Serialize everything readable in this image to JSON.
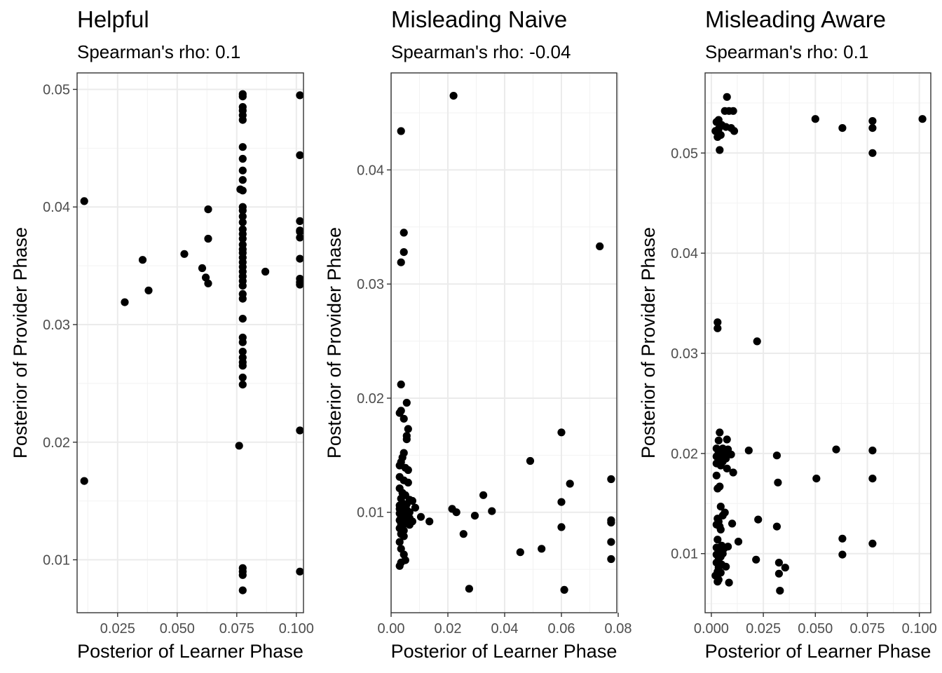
{
  "chart_data": [
    {
      "type": "scatter",
      "title": "Helpful",
      "subtitle": "Spearman's rho: 0.1",
      "xlabel": "Posterior of Learner Phase",
      "ylabel": "Posterior of Provider Phase",
      "xlim": [
        0.008,
        0.103
      ],
      "ylim": [
        0.0055,
        0.0514
      ],
      "xticks": [
        0.025,
        0.05,
        0.075,
        0.1
      ],
      "xtick_labels": [
        "0.025",
        "0.050",
        "0.075",
        "0.100"
      ],
      "yticks": [
        0.01,
        0.02,
        0.03,
        0.04,
        0.05
      ],
      "ytick_labels": [
        "0.01",
        "0.02",
        "0.03",
        "0.04",
        "0.05"
      ],
      "grid": true,
      "points": [
        [
          0.011,
          0.0405
        ],
        [
          0.011,
          0.0167
        ],
        [
          0.028,
          0.0319
        ],
        [
          0.0355,
          0.0355
        ],
        [
          0.038,
          0.0329
        ],
        [
          0.053,
          0.036
        ],
        [
          0.0605,
          0.0348
        ],
        [
          0.062,
          0.034
        ],
        [
          0.063,
          0.0398
        ],
        [
          0.063,
          0.0373
        ],
        [
          0.063,
          0.0335
        ],
        [
          0.0765,
          0.0415
        ],
        [
          0.076,
          0.0197
        ],
        [
          0.087,
          0.0345
        ],
        [
          0.0775,
          0.0496
        ],
        [
          0.0775,
          0.0494
        ],
        [
          0.0775,
          0.0485
        ],
        [
          0.0775,
          0.0482
        ],
        [
          0.0775,
          0.0478
        ],
        [
          0.0775,
          0.0474
        ],
        [
          0.0775,
          0.0451
        ],
        [
          0.0775,
          0.0441
        ],
        [
          0.0775,
          0.0431
        ],
        [
          0.0775,
          0.0423
        ],
        [
          0.0775,
          0.0414
        ],
        [
          0.0775,
          0.04
        ],
        [
          0.0775,
          0.0397
        ],
        [
          0.0775,
          0.0392
        ],
        [
          0.0775,
          0.0387
        ],
        [
          0.0775,
          0.0381
        ],
        [
          0.0775,
          0.0377
        ],
        [
          0.0775,
          0.0373
        ],
        [
          0.0775,
          0.0368
        ],
        [
          0.0775,
          0.0364
        ],
        [
          0.0775,
          0.0361
        ],
        [
          0.0775,
          0.0357
        ],
        [
          0.0775,
          0.0353
        ],
        [
          0.0775,
          0.0349
        ],
        [
          0.0775,
          0.0345
        ],
        [
          0.0775,
          0.0341
        ],
        [
          0.0775,
          0.0337
        ],
        [
          0.0775,
          0.0333
        ],
        [
          0.0775,
          0.0326
        ],
        [
          0.0775,
          0.0322
        ],
        [
          0.0775,
          0.0305
        ],
        [
          0.0775,
          0.0289
        ],
        [
          0.0775,
          0.0285
        ],
        [
          0.0775,
          0.0277
        ],
        [
          0.0775,
          0.0272
        ],
        [
          0.0775,
          0.0268
        ],
        [
          0.0775,
          0.0265
        ],
        [
          0.0775,
          0.0255
        ],
        [
          0.0775,
          0.0249
        ],
        [
          0.0775,
          0.0093
        ],
        [
          0.0775,
          0.009
        ],
        [
          0.0775,
          0.0087
        ],
        [
          0.0775,
          0.0074
        ],
        [
          0.1015,
          0.0495
        ],
        [
          0.1015,
          0.0444
        ],
        [
          0.1015,
          0.0388
        ],
        [
          0.1015,
          0.038
        ],
        [
          0.1015,
          0.0379
        ],
        [
          0.1015,
          0.0374
        ],
        [
          0.1015,
          0.0356
        ],
        [
          0.1015,
          0.0339
        ],
        [
          0.1015,
          0.0336
        ],
        [
          0.1015,
          0.0334
        ],
        [
          0.1015,
          0.021
        ],
        [
          0.1015,
          0.009
        ]
      ]
    },
    {
      "type": "scatter",
      "title": "Misleading Naive",
      "subtitle": "Spearman's rho: -0.04",
      "xlabel": "Posterior of Learner Phase",
      "ylabel": "Posterior of Provider Phase",
      "xlim": [
        0,
        0.0795
      ],
      "ylim": [
        0.0012,
        0.0485
      ],
      "xticks": [
        0,
        0.02,
        0.04,
        0.06,
        0.08
      ],
      "xtick_labels": [
        "0.00",
        "0.02",
        "0.04",
        "0.06",
        "0.08"
      ],
      "yticks": [
        0.01,
        0.02,
        0.03,
        0.04
      ],
      "ytick_labels": [
        "0.01",
        "0.02",
        "0.03",
        "0.04"
      ],
      "grid": true,
      "points": [
        [
          0.022,
          0.0465
        ],
        [
          0.0035,
          0.0434
        ],
        [
          0.0045,
          0.0345
        ],
        [
          0.0045,
          0.0328
        ],
        [
          0.0035,
          0.0319
        ],
        [
          0.0735,
          0.0333
        ],
        [
          0.0035,
          0.0212
        ],
        [
          0.0055,
          0.0196
        ],
        [
          0.0035,
          0.0189
        ],
        [
          0.003,
          0.0187
        ],
        [
          0.0045,
          0.0182
        ],
        [
          0.006,
          0.0173
        ],
        [
          0.0055,
          0.0167
        ],
        [
          0.0055,
          0.0164
        ],
        [
          0.0045,
          0.0152
        ],
        [
          0.004,
          0.0148
        ],
        [
          0.0035,
          0.0144
        ],
        [
          0.003,
          0.0141
        ],
        [
          0.005,
          0.0139
        ],
        [
          0.006,
          0.0137
        ],
        [
          0.003,
          0.0131
        ],
        [
          0.0045,
          0.0128
        ],
        [
          0.006,
          0.0126
        ],
        [
          0.003,
          0.0121
        ],
        [
          0.004,
          0.0117
        ],
        [
          0.005,
          0.0115
        ],
        [
          0.0035,
          0.0112
        ],
        [
          0.0065,
          0.0111
        ],
        [
          0.0075,
          0.011
        ],
        [
          0.004,
          0.0108
        ],
        [
          0.0055,
          0.0107
        ],
        [
          0.003,
          0.0106
        ],
        [
          0.0045,
          0.0105
        ],
        [
          0.0085,
          0.0104
        ],
        [
          0.003,
          0.0103
        ],
        [
          0.0055,
          0.0102
        ],
        [
          0.004,
          0.0101
        ],
        [
          0.0065,
          0.01
        ],
        [
          0.003,
          0.0099
        ],
        [
          0.0045,
          0.0098
        ],
        [
          0.0055,
          0.0097
        ],
        [
          0.0035,
          0.0096
        ],
        [
          0.0065,
          0.0095
        ],
        [
          0.004,
          0.0094
        ],
        [
          0.003,
          0.0093
        ],
        [
          0.0075,
          0.0092
        ],
        [
          0.005,
          0.0091
        ],
        [
          0.0035,
          0.009
        ],
        [
          0.0065,
          0.0089
        ],
        [
          0.004,
          0.0088
        ],
        [
          0.003,
          0.0086
        ],
        [
          0.0045,
          0.0084
        ],
        [
          0.0035,
          0.0081
        ],
        [
          0.0045,
          0.0079
        ],
        [
          0.003,
          0.0074
        ],
        [
          0.0035,
          0.0068
        ],
        [
          0.0045,
          0.0063
        ],
        [
          0.005,
          0.0058
        ],
        [
          0.0035,
          0.0056
        ],
        [
          0.003,
          0.0053
        ],
        [
          0.0105,
          0.0096
        ],
        [
          0.0135,
          0.0092
        ],
        [
          0.0215,
          0.0103
        ],
        [
          0.023,
          0.01
        ],
        [
          0.0255,
          0.0081
        ],
        [
          0.0275,
          0.0033
        ],
        [
          0.0295,
          0.0097
        ],
        [
          0.0325,
          0.0115
        ],
        [
          0.0355,
          0.0101
        ],
        [
          0.0455,
          0.0065
        ],
        [
          0.049,
          0.0145
        ],
        [
          0.053,
          0.0068
        ],
        [
          0.06,
          0.017
        ],
        [
          0.06,
          0.0109
        ],
        [
          0.06,
          0.0087
        ],
        [
          0.061,
          0.0032
        ],
        [
          0.063,
          0.0125
        ],
        [
          0.0775,
          0.0129
        ],
        [
          0.0775,
          0.0093
        ],
        [
          0.0775,
          0.0091
        ],
        [
          0.0775,
          0.0074
        ],
        [
          0.0775,
          0.0059
        ]
      ]
    },
    {
      "type": "scatter",
      "title": "Misleading Aware",
      "subtitle": "Spearman's rho: 0.1",
      "xlabel": "Posterior of Learner Phase",
      "ylabel": "Posterior of Provider Phase",
      "xlim": [
        -0.003,
        0.1055
      ],
      "ylim": [
        0.0041,
        0.058
      ],
      "xticks": [
        0,
        0.025,
        0.05,
        0.075,
        0.1
      ],
      "xtick_labels": [
        "0.000",
        "0.025",
        "0.050",
        "0.075",
        "0.100"
      ],
      "yticks": [
        0.01,
        0.02,
        0.03,
        0.04,
        0.05
      ],
      "ytick_labels": [
        "0.01",
        "0.02",
        "0.03",
        "0.04",
        "0.05"
      ],
      "grid": true,
      "points": [
        [
          0.0075,
          0.0556
        ],
        [
          0.0065,
          0.0542
        ],
        [
          0.0085,
          0.0542
        ],
        [
          0.0105,
          0.0542
        ],
        [
          0.0035,
          0.0533
        ],
        [
          0.0025,
          0.0531
        ],
        [
          0.005,
          0.0528
        ],
        [
          0.007,
          0.0526
        ],
        [
          0.0095,
          0.0525
        ],
        [
          0.0035,
          0.0524
        ],
        [
          0.002,
          0.0522
        ],
        [
          0.011,
          0.0522
        ],
        [
          0.0045,
          0.0518
        ],
        [
          0.003,
          0.0516
        ],
        [
          0.004,
          0.0503
        ],
        [
          0.05,
          0.0534
        ],
        [
          0.063,
          0.0525
        ],
        [
          0.0775,
          0.0532
        ],
        [
          0.0775,
          0.0525
        ],
        [
          0.0775,
          0.05
        ],
        [
          0.1015,
          0.0534
        ],
        [
          0.003,
          0.0331
        ],
        [
          0.003,
          0.0325
        ],
        [
          0.022,
          0.0312
        ],
        [
          0.004,
          0.0221
        ],
        [
          0.0075,
          0.0214
        ],
        [
          0.0035,
          0.0213
        ],
        [
          0.0025,
          0.0205
        ],
        [
          0.0055,
          0.0205
        ],
        [
          0.008,
          0.0204
        ],
        [
          0.0035,
          0.0201
        ],
        [
          0.006,
          0.02
        ],
        [
          0.0095,
          0.0199
        ],
        [
          0.0025,
          0.0197
        ],
        [
          0.0045,
          0.0196
        ],
        [
          0.007,
          0.0195
        ],
        [
          0.0035,
          0.0193
        ],
        [
          0.0055,
          0.0192
        ],
        [
          0.0025,
          0.019
        ],
        [
          0.0045,
          0.0188
        ],
        [
          0.0075,
          0.0185
        ],
        [
          0.0105,
          0.0181
        ],
        [
          0.0025,
          0.0178
        ],
        [
          0.004,
          0.0167
        ],
        [
          0.003,
          0.0165
        ],
        [
          0.0045,
          0.0147
        ],
        [
          0.0065,
          0.0141
        ],
        [
          0.0055,
          0.0138
        ],
        [
          0.003,
          0.0135
        ],
        [
          0.0035,
          0.0132
        ],
        [
          0.01,
          0.013
        ],
        [
          0.0025,
          0.0129
        ],
        [
          0.004,
          0.0127
        ],
        [
          0.0045,
          0.0124
        ],
        [
          0.003,
          0.0114
        ],
        [
          0.013,
          0.0112
        ],
        [
          0.005,
          0.0108
        ],
        [
          0.008,
          0.0107
        ],
        [
          0.0025,
          0.0106
        ],
        [
          0.006,
          0.0105
        ],
        [
          0.004,
          0.0104
        ],
        [
          0.0035,
          0.0102
        ],
        [
          0.0055,
          0.01
        ],
        [
          0.0025,
          0.0099
        ],
        [
          0.0045,
          0.0097
        ],
        [
          0.0035,
          0.0094
        ],
        [
          0.0025,
          0.0091
        ],
        [
          0.005,
          0.0089
        ],
        [
          0.007,
          0.0087
        ],
        [
          0.0035,
          0.0086
        ],
        [
          0.003,
          0.0082
        ],
        [
          0.0045,
          0.0081
        ],
        [
          0.002,
          0.0078
        ],
        [
          0.0035,
          0.0074
        ],
        [
          0.003,
          0.0072
        ],
        [
          0.0085,
          0.0071
        ],
        [
          0.018,
          0.0203
        ],
        [
          0.0225,
          0.0134
        ],
        [
          0.0215,
          0.0094
        ],
        [
          0.0315,
          0.0198
        ],
        [
          0.032,
          0.0171
        ],
        [
          0.0315,
          0.0127
        ],
        [
          0.0325,
          0.0091
        ],
        [
          0.0325,
          0.008
        ],
        [
          0.033,
          0.0063
        ],
        [
          0.0355,
          0.0086
        ],
        [
          0.0505,
          0.0175
        ],
        [
          0.06,
          0.0204
        ],
        [
          0.063,
          0.0115
        ],
        [
          0.063,
          0.0099
        ],
        [
          0.0775,
          0.0203
        ],
        [
          0.0775,
          0.0175
        ],
        [
          0.0775,
          0.011
        ]
      ]
    }
  ]
}
